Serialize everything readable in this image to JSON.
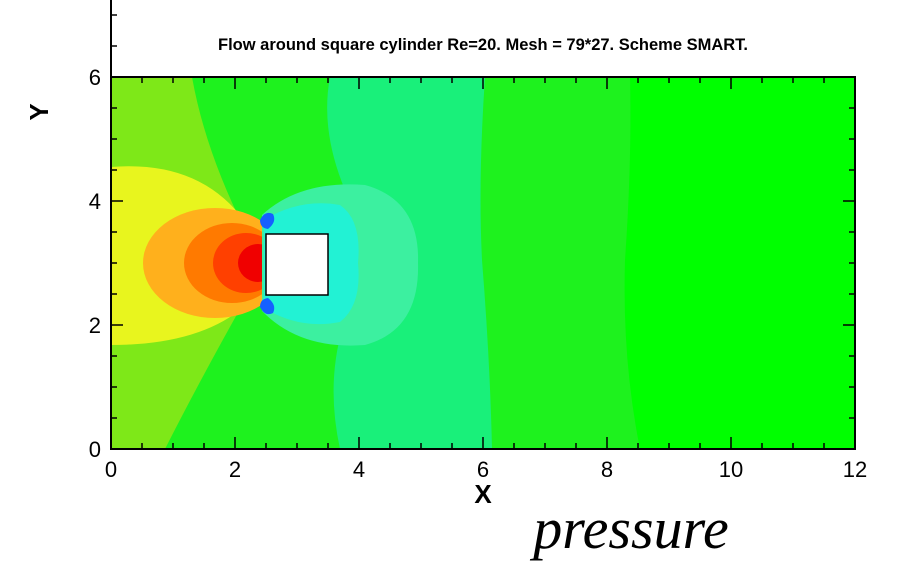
{
  "chart_data": {
    "type": "contour",
    "title": "Flow around square cylinder Re=20. Mesh = 79*27. Scheme SMART.",
    "xlabel": "X",
    "ylabel": "Y",
    "caption": "pressure",
    "xlim": [
      0,
      12
    ],
    "ylim": [
      0,
      6
    ],
    "x_ticks": [
      0,
      2,
      4,
      6,
      8,
      10,
      12
    ],
    "y_ticks": [
      0,
      2,
      4,
      6
    ],
    "obstacle": {
      "x": [
        2.5,
        3.5
      ],
      "y": [
        2.5,
        3.5
      ]
    },
    "legend": "none",
    "colormap": [
      "#0000ff",
      "#00ffff",
      "#00ff00",
      "#ffff00",
      "#ff0000"
    ]
  }
}
